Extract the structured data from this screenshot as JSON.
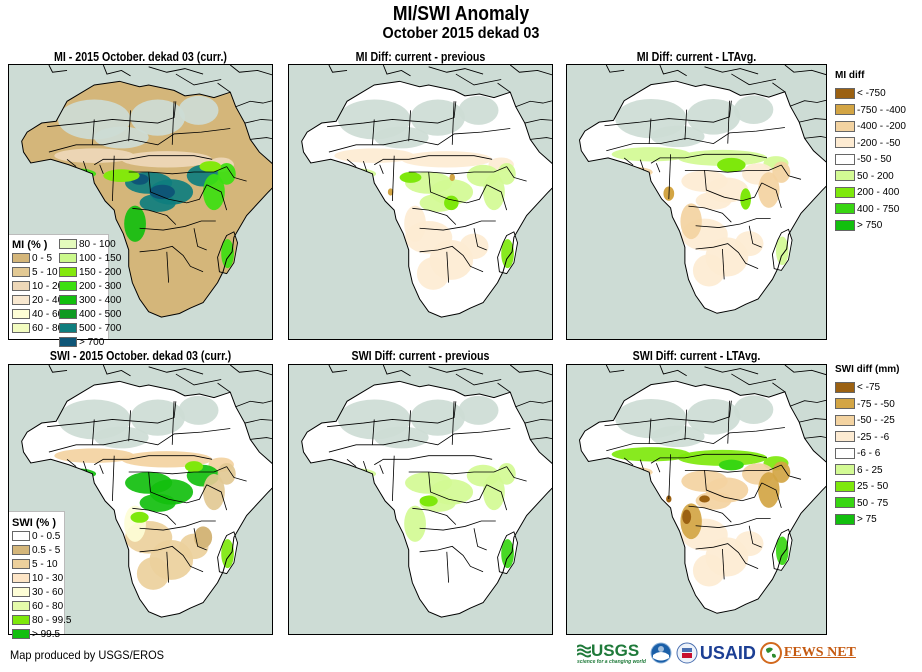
{
  "header": {
    "title": "MI/SWI Anomaly",
    "subtitle": "October 2015 dekad 03"
  },
  "panels": [
    {
      "id": "mi-current",
      "title": "MI - 2015 October. dekad 03 (curr.)",
      "type": "MI",
      "scheme": "mi-abs"
    },
    {
      "id": "mi-diff-prev",
      "title": "MI Diff: current - previous",
      "type": "MI",
      "scheme": "mi-diff-prev"
    },
    {
      "id": "mi-diff-lta",
      "title": "MI Diff: current - LTAvg.",
      "type": "MI",
      "scheme": "mi-diff-lta"
    },
    {
      "id": "swi-current",
      "title": "SWI - 2015 October. dekad 03 (curr.)",
      "type": "SWI",
      "scheme": "swi-abs"
    },
    {
      "id": "swi-diff-prev",
      "title": "SWI Diff: current - previous",
      "type": "SWI",
      "scheme": "swi-diff-prev"
    },
    {
      "id": "swi-diff-lta",
      "title": "SWI Diff: current - LTAvg.",
      "type": "SWI",
      "scheme": "swi-diff-lta"
    }
  ],
  "legends": {
    "mi_abs": {
      "title": "MI (% )",
      "col1": [
        {
          "label": "0 - 5",
          "color": "#d4b67a"
        },
        {
          "label": "5 - 10",
          "color": "#e2c994"
        },
        {
          "label": "10 - 20",
          "color": "#eed8b8"
        },
        {
          "label": "20 - 40",
          "color": "#f8e8d0"
        },
        {
          "label": "40 - 60",
          "color": "#fdfdd6"
        },
        {
          "label": "60 - 80",
          "color": "#f2fcc0"
        }
      ],
      "col2": [
        {
          "label": "80 - 100",
          "color": "#e4fbbc"
        },
        {
          "label": "100 - 150",
          "color": "#cbf98c"
        },
        {
          "label": "150 - 200",
          "color": "#84e80c"
        },
        {
          "label": "200 - 300",
          "color": "#3ce010"
        },
        {
          "label": "300 - 400",
          "color": "#12bf0e"
        },
        {
          "label": "400 - 500",
          "color": "#0f9a22"
        },
        {
          "label": "500 - 700",
          "color": "#0e7e7e"
        },
        {
          "label": "> 700",
          "color": "#0e5677"
        }
      ]
    },
    "swi_abs": {
      "title": "SWI (% )",
      "items": [
        {
          "label": "0 - 0.5",
          "color": "#ffffff"
        },
        {
          "label": "0.5 - 5",
          "color": "#d4b67a"
        },
        {
          "label": "5 - 10",
          "color": "#ecd09c"
        },
        {
          "label": "10 - 30",
          "color": "#fde5c6"
        },
        {
          "label": "30 - 60",
          "color": "#fdfdd6"
        },
        {
          "label": "60 - 80",
          "color": "#e4fbaa"
        },
        {
          "label": "80 - 99.5",
          "color": "#7ee80c"
        },
        {
          "label": "> 99.5",
          "color": "#12bf0e"
        }
      ]
    },
    "mi_diff": {
      "title": "MI diff",
      "items": [
        {
          "label": "< -750",
          "color": "#9b6112"
        },
        {
          "label": "-750 - -400",
          "color": "#d3a544"
        },
        {
          "label": "-400 - -200",
          "color": "#f3d3a1"
        },
        {
          "label": "-200 - -50",
          "color": "#fdebd2"
        },
        {
          "label": "-50 - 50",
          "color": "#ffffff"
        },
        {
          "label": "50 - 200",
          "color": "#d3fa94"
        },
        {
          "label": "200 - 400",
          "color": "#7ee80c"
        },
        {
          "label": "400 - 750",
          "color": "#38d612"
        },
        {
          "label": "> 750",
          "color": "#12bf0e"
        }
      ]
    },
    "swi_diff": {
      "title": "SWI diff (mm)",
      "items": [
        {
          "label": "< -75",
          "color": "#9b6112"
        },
        {
          "label": "-75 - -50",
          "color": "#d3a544"
        },
        {
          "label": "-50 - -25",
          "color": "#f3d3a1"
        },
        {
          "label": "-25 - -6",
          "color": "#fdebd2"
        },
        {
          "label": "-6 - 6",
          "color": "#ffffff"
        },
        {
          "label": "6 - 25",
          "color": "#d3fa94"
        },
        {
          "label": "25 - 50",
          "color": "#7ee80c"
        },
        {
          "label": "50 - 75",
          "color": "#38d612"
        },
        {
          "label": "> 75",
          "color": "#12bf0e"
        }
      ]
    }
  },
  "colors": {
    "ocean": "#cddcd5",
    "nodata": "#cddcd5",
    "border": "#000000"
  },
  "footer": {
    "credit": "Map produced by USGS/EROS",
    "logos": [
      "USGS",
      "NOAA",
      "USAID",
      "FEWS NET"
    ],
    "usgs_tagline": "science for a changing world"
  }
}
